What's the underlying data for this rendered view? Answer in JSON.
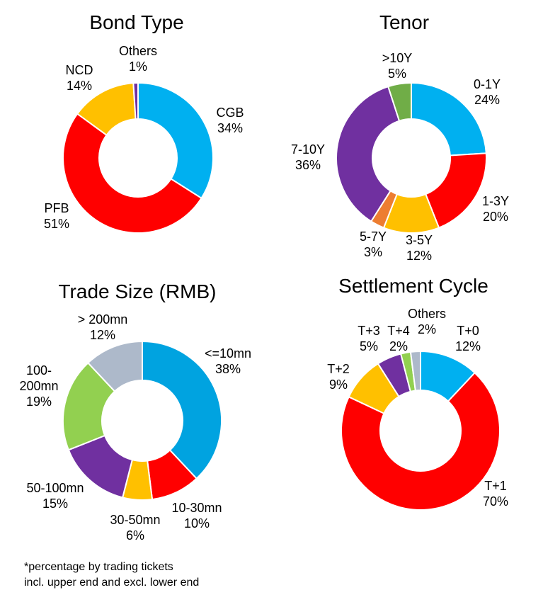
{
  "chart_data": [
    {
      "type": "pie",
      "title": "Bond Type",
      "labels": [
        "CGB",
        "PFB",
        "NCD",
        "Others"
      ],
      "values": [
        34,
        51,
        14,
        1
      ],
      "colors": [
        "#00B0F0",
        "#FF0000",
        "#FFC000",
        "#7030A0"
      ]
    },
    {
      "type": "pie",
      "title": "Tenor",
      "labels": [
        "0-1Y",
        "1-3Y",
        "3-5Y",
        "5-7Y",
        "7-10Y",
        ">10Y"
      ],
      "values": [
        24,
        20,
        12,
        3,
        36,
        5
      ],
      "colors": [
        "#00B0F0",
        "#FF0000",
        "#FFC000",
        "#ED7D31",
        "#7030A0",
        "#70AD47"
      ]
    },
    {
      "type": "pie",
      "title": "Trade Size (RMB)",
      "labels": [
        "<=10mn",
        "10-30mn",
        "30-50mn",
        "50-100mn",
        "100-200mn",
        "> 200mn"
      ],
      "values": [
        38,
        10,
        6,
        15,
        19,
        12
      ],
      "colors": [
        "#00A3E0",
        "#FF0000",
        "#FFC000",
        "#7030A0",
        "#92D050",
        "#ADB9CA"
      ]
    },
    {
      "type": "pie",
      "title": "Settlement Cycle",
      "labels": [
        "T+0",
        "T+1",
        "T+2",
        "T+3",
        "T+4",
        "Others"
      ],
      "values": [
        12,
        70,
        9,
        5,
        2,
        2
      ],
      "colors": [
        "#00B0F0",
        "#FF0000",
        "#FFC000",
        "#7030A0",
        "#92D050",
        "#ADB9CA"
      ]
    }
  ],
  "footnote": {
    "line1": "*percentage by trading tickets",
    "line2": "incl. upper end and excl. lower end"
  }
}
